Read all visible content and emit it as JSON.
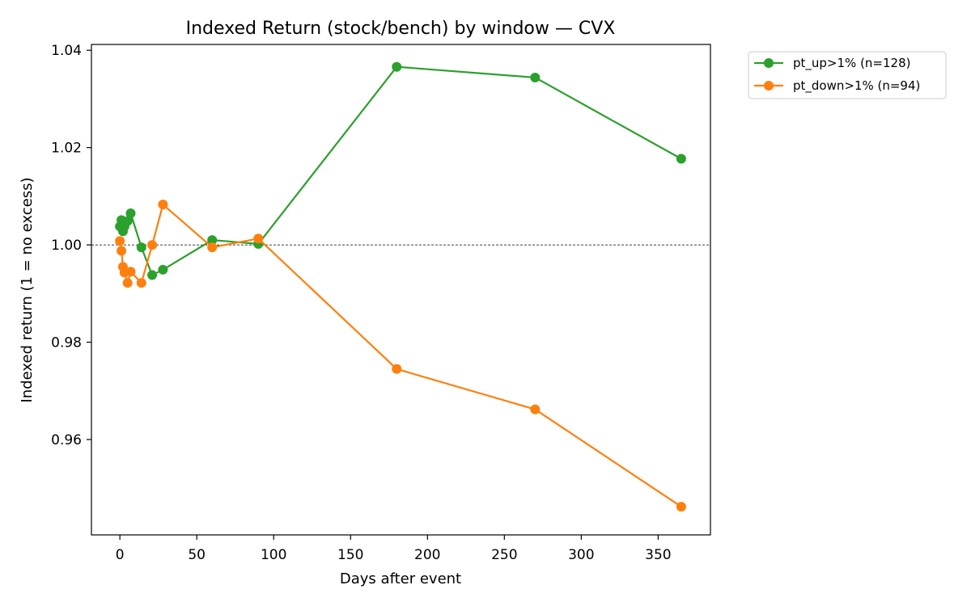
{
  "chart_data": {
    "type": "line",
    "title": "Indexed Return (stock/bench) by window — CVX",
    "xlabel": "Days after event",
    "ylabel": "Indexed return (1 = no excess)",
    "xlim": [
      -18.5,
      384
    ],
    "ylim": [
      0.9404,
      1.0412
    ],
    "x_ticks": [
      0,
      50,
      100,
      150,
      200,
      250,
      300,
      350
    ],
    "x_tick_labels": [
      "0",
      "50",
      "100",
      "150",
      "200",
      "250",
      "300",
      "350"
    ],
    "y_ticks": [
      0.96,
      0.98,
      1.0,
      1.02,
      1.04
    ],
    "y_tick_labels": [
      "0.96",
      "0.98",
      "1.00",
      "1.02",
      "1.04"
    ],
    "reference_line": {
      "y": 1.0,
      "style": "dashed",
      "color": "#000000"
    },
    "grid": false,
    "legend_position": "outside-top-right",
    "series": [
      {
        "name": "pt_up>1% (n=128)",
        "color": "#2ca02c",
        "x": [
          0,
          1,
          2,
          3,
          5,
          7,
          14,
          21,
          28,
          60,
          90,
          180,
          270,
          365
        ],
        "y": [
          1.0038,
          1.0051,
          1.0028,
          1.0038,
          1.0049,
          1.0065,
          0.9995,
          0.9938,
          0.9949,
          1.001,
          1.0002,
          1.0366,
          1.0344,
          1.0177
        ]
      },
      {
        "name": "pt_down>1% (n=94)",
        "color": "#ff7f0e",
        "x": [
          0,
          1,
          2,
          3,
          5,
          7,
          14,
          21,
          28,
          60,
          90,
          180,
          270,
          365
        ],
        "y": [
          1.0008,
          0.9988,
          0.9955,
          0.9943,
          0.9922,
          0.9945,
          0.9922,
          1.0,
          1.0083,
          0.9995,
          1.0013,
          0.9745,
          0.9662,
          0.9462
        ]
      }
    ]
  }
}
